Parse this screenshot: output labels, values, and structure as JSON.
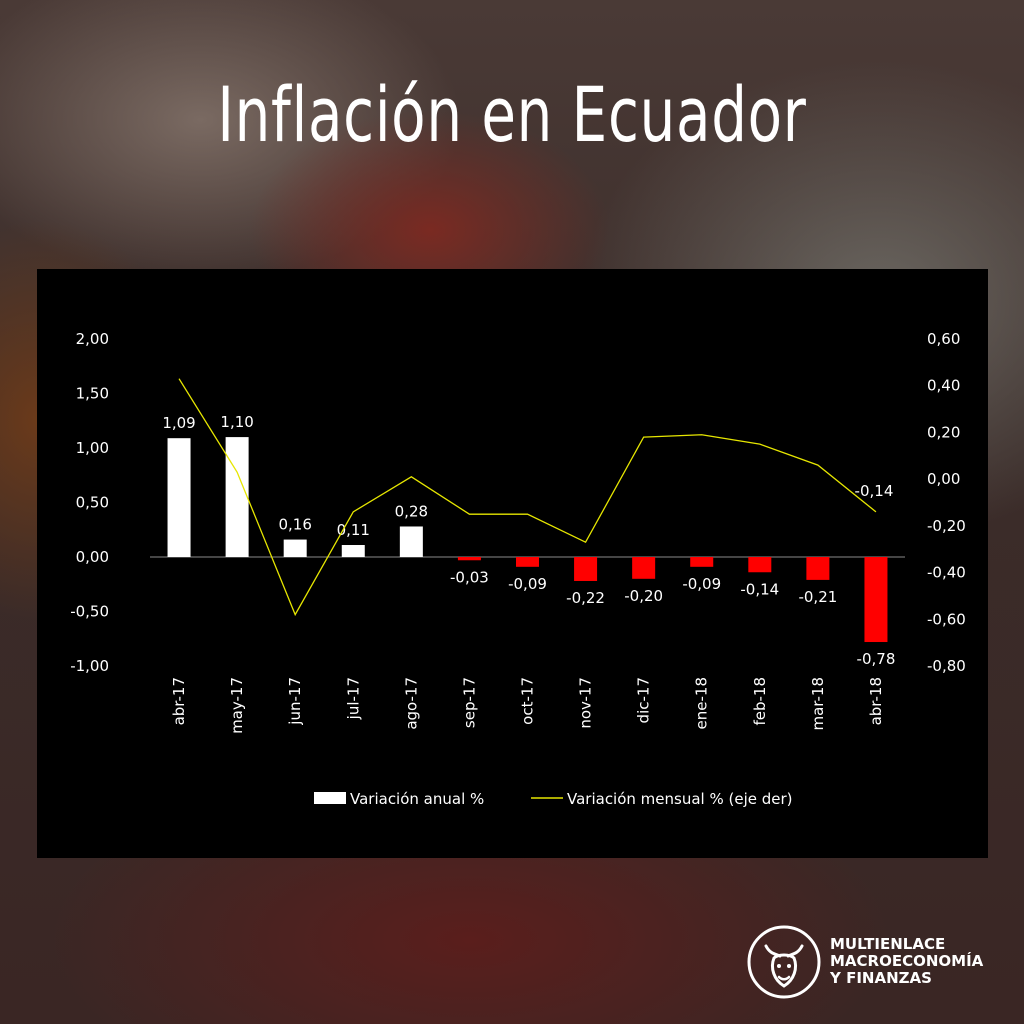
{
  "title": "Inflación en Ecuador",
  "brand": {
    "line1": "MULTIENLACE",
    "line2": "MACROECONOMÍA",
    "line3": "Y FINANZAS",
    "icon": "bull-head-icon"
  },
  "colors": {
    "positive_bar": "#ffffff",
    "negative_bar": "#ff0000",
    "line": "#e6e600",
    "panel": "#000000"
  },
  "chart_data": {
    "type": "bar",
    "categories": [
      "abr-17",
      "may-17",
      "jun-17",
      "jul-17",
      "ago-17",
      "sep-17",
      "oct-17",
      "nov-17",
      "dic-17",
      "ene-18",
      "feb-18",
      "mar-18",
      "abr-18"
    ],
    "series": [
      {
        "name": "Variación anual %",
        "type": "bar",
        "axis": "left",
        "values": [
          1.09,
          1.1,
          0.16,
          0.11,
          0.28,
          -0.03,
          -0.09,
          -0.22,
          -0.2,
          -0.09,
          -0.14,
          -0.21,
          -0.78
        ],
        "labels": [
          "1,09",
          "1,10",
          "0,16",
          "0,11",
          "0,28",
          "-0,03",
          "-0,09",
          "-0,22",
          "-0,20",
          "-0,09",
          "-0,14",
          "-0,21",
          "-0,78"
        ]
      },
      {
        "name": "Variación mensual % (eje der)",
        "type": "line",
        "axis": "right",
        "values": [
          0.43,
          0.03,
          -0.58,
          -0.14,
          0.01,
          -0.15,
          -0.15,
          -0.27,
          0.18,
          0.19,
          0.15,
          0.06,
          -0.14
        ],
        "labels": [
          "",
          "",
          "",
          "",
          "",
          "",
          "",
          "",
          "",
          "",
          "",
          "",
          "-0,14"
        ]
      }
    ],
    "ylim_left": [
      -1.0,
      2.0
    ],
    "yticks_left": [
      "2,00",
      "1,50",
      "1,00",
      "0,50",
      "0,00",
      "-0,50",
      "-1,00"
    ],
    "ylim_right": [
      -0.8,
      0.6
    ],
    "yticks_right": [
      "0,60",
      "0,40",
      "0,20",
      "0,00",
      "-0,20",
      "-0,40",
      "-0,60",
      "-0,80"
    ],
    "legend": "bottom",
    "grid": false
  }
}
